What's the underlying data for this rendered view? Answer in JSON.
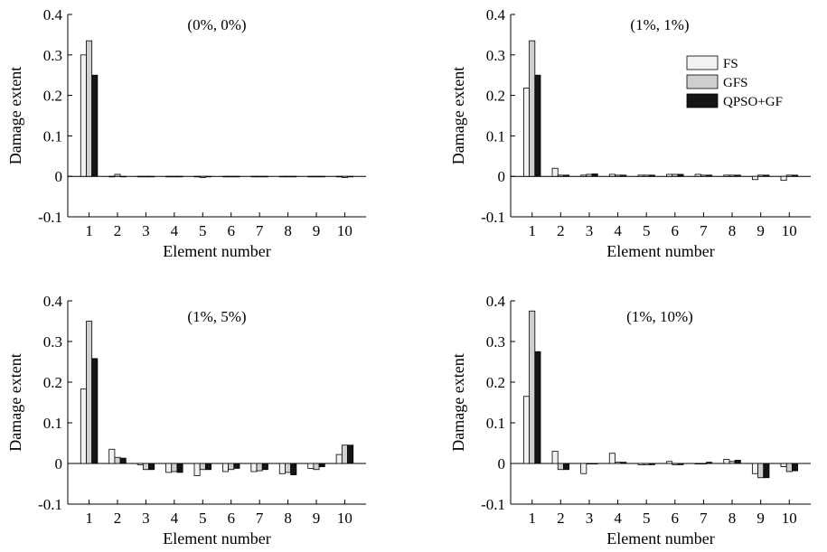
{
  "figure": {
    "legend_location": "top-right of top-right panel",
    "series_colors": {
      "FS": "#f2f2f2",
      "GFS": "#cfcfcf",
      "QPSO+GF": "#151515"
    },
    "legend": [
      "FS",
      "GFS",
      "QPSO+GF"
    ]
  },
  "chart_data": [
    {
      "type": "bar",
      "title": "(0%, 0%)",
      "xlabel": "Element number",
      "ylabel": "Damage extent",
      "categories": [
        "1",
        "2",
        "3",
        "4",
        "5",
        "6",
        "7",
        "8",
        "9",
        "10"
      ],
      "ylim": [
        -0.1,
        0.4
      ],
      "yticks": [
        "-0.1",
        "0",
        "0.1",
        "0.2",
        "0.3",
        "0.4"
      ],
      "series": [
        {
          "name": "FS",
          "values": [
            0.3,
            0.0,
            0.0,
            0.0,
            0.0,
            0.0,
            0.0,
            0.0,
            0.0,
            0.0
          ]
        },
        {
          "name": "GFS",
          "values": [
            0.335,
            0.005,
            0.0,
            0.0,
            -0.003,
            0.0,
            0.0,
            0.0,
            0.0,
            -0.003
          ]
        },
        {
          "name": "QPSO+GF",
          "values": [
            0.25,
            0.0,
            0.0,
            0.0,
            0.0,
            0.0,
            0.0,
            0.0,
            0.0,
            0.0
          ]
        }
      ],
      "legend": false
    },
    {
      "type": "bar",
      "title": "(1%, 1%)",
      "xlabel": "Element number",
      "ylabel": "Damage extent",
      "categories": [
        "1",
        "2",
        "3",
        "4",
        "5",
        "6",
        "7",
        "8",
        "9",
        "10"
      ],
      "ylim": [
        -0.1,
        0.4
      ],
      "yticks": [
        "-0.1",
        "0",
        "0.1",
        "0.2",
        "0.3",
        "0.4"
      ],
      "series": [
        {
          "name": "FS",
          "values": [
            0.218,
            0.02,
            0.003,
            0.005,
            0.003,
            0.005,
            0.005,
            0.003,
            -0.008,
            -0.01
          ]
        },
        {
          "name": "GFS",
          "values": [
            0.335,
            0.003,
            0.005,
            0.003,
            0.003,
            0.005,
            0.003,
            0.003,
            0.003,
            0.003
          ]
        },
        {
          "name": "QPSO+GF",
          "values": [
            0.25,
            0.003,
            0.006,
            0.003,
            0.003,
            0.005,
            0.003,
            0.003,
            0.003,
            0.003
          ]
        }
      ],
      "legend": true
    },
    {
      "type": "bar",
      "title": "(1%, 5%)",
      "xlabel": "Element number",
      "ylabel": "Damage extent",
      "categories": [
        "1",
        "2",
        "3",
        "4",
        "5",
        "6",
        "7",
        "8",
        "9",
        "10"
      ],
      "ylim": [
        -0.1,
        0.4
      ],
      "yticks": [
        "-0.1",
        "0",
        "0.1",
        "0.2",
        "0.3",
        "0.4"
      ],
      "series": [
        {
          "name": "FS",
          "values": [
            0.183,
            0.035,
            -0.003,
            -0.022,
            -0.03,
            -0.02,
            -0.02,
            -0.025,
            -0.012,
            0.022
          ]
        },
        {
          "name": "GFS",
          "values": [
            0.35,
            0.015,
            -0.015,
            -0.02,
            -0.015,
            -0.015,
            -0.018,
            -0.022,
            -0.015,
            0.045
          ]
        },
        {
          "name": "QPSO+GF",
          "values": [
            0.258,
            0.013,
            -0.015,
            -0.022,
            -0.015,
            -0.012,
            -0.015,
            -0.028,
            -0.008,
            0.045
          ]
        }
      ],
      "legend": false
    },
    {
      "type": "bar",
      "title": "(1%, 10%)",
      "xlabel": "Element number",
      "ylabel": "Damage extent",
      "categories": [
        "1",
        "2",
        "3",
        "4",
        "5",
        "6",
        "7",
        "8",
        "9",
        "10"
      ],
      "ylim": [
        -0.1,
        0.4
      ],
      "yticks": [
        "-0.1",
        "0",
        "0.1",
        "0.2",
        "0.3",
        "0.4"
      ],
      "series": [
        {
          "name": "FS",
          "values": [
            0.165,
            0.03,
            -0.025,
            0.025,
            -0.003,
            0.005,
            0.0,
            0.01,
            -0.025,
            -0.008
          ]
        },
        {
          "name": "GFS",
          "values": [
            0.375,
            -0.015,
            0.0,
            0.003,
            -0.003,
            -0.003,
            0.0,
            0.005,
            -0.035,
            -0.02
          ]
        },
        {
          "name": "QPSO+GF",
          "values": [
            0.275,
            -0.015,
            0.0,
            0.003,
            -0.003,
            -0.003,
            0.003,
            0.008,
            -0.035,
            -0.018
          ]
        }
      ],
      "legend": false
    }
  ]
}
